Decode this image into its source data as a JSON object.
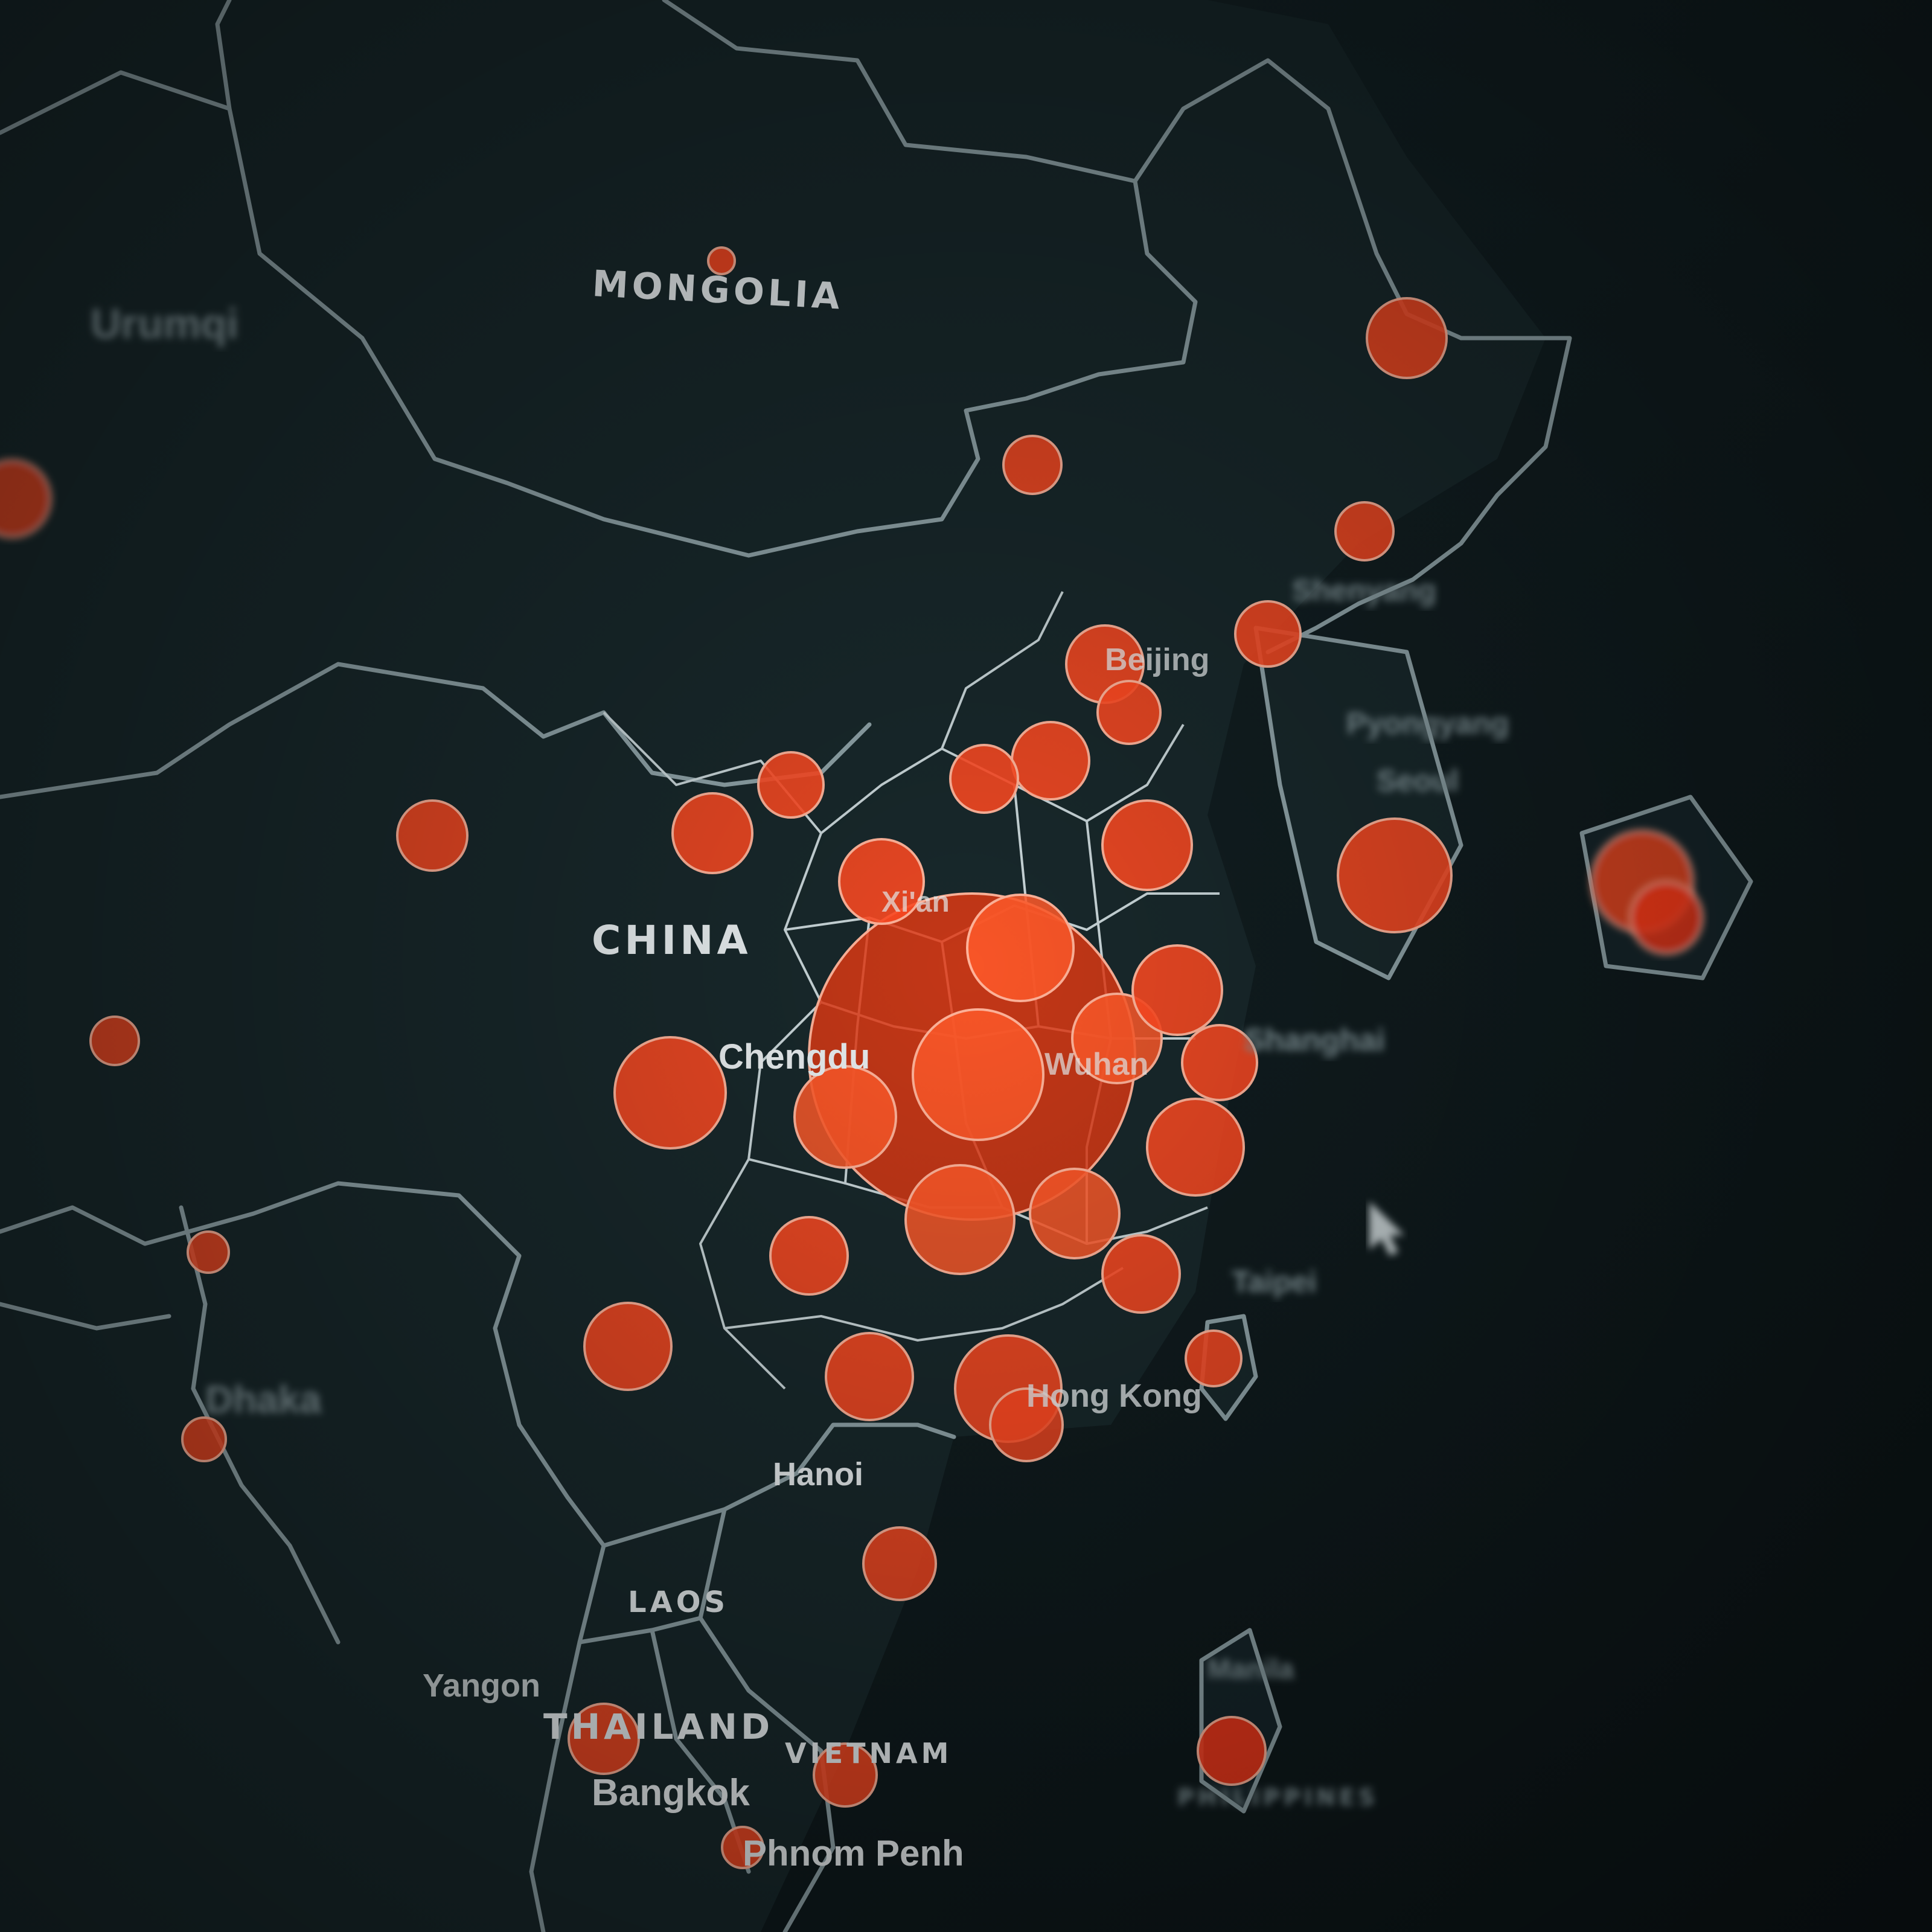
{
  "map": {
    "colors": {
      "background": "#0f1a1c",
      "land": "#172528",
      "border": "#8fa3a8",
      "bubble": "#ff4a22",
      "bubble_stroke": "#ffb39a",
      "label": "#e9eef0"
    },
    "country_labels": [
      {
        "id": "mongolia",
        "text": "MONGOLIA"
      },
      {
        "id": "china",
        "text": "CHINA"
      },
      {
        "id": "laos",
        "text": "LAOS"
      },
      {
        "id": "thailand",
        "text": "THAILAND"
      },
      {
        "id": "vietnam",
        "text": "VIETNAM"
      },
      {
        "id": "philippines",
        "text": "PHILIPPINES"
      }
    ],
    "city_labels": [
      {
        "id": "urumqi",
        "text": "Urumqi"
      },
      {
        "id": "xian",
        "text": "Xi'an"
      },
      {
        "id": "chengdu",
        "text": "Chengdu"
      },
      {
        "id": "wuhan",
        "text": "Wuhan"
      },
      {
        "id": "beijing",
        "text": "Beijing"
      },
      {
        "id": "shenyang",
        "text": "Shenyang"
      },
      {
        "id": "pyongyang",
        "text": "Pyongyang"
      },
      {
        "id": "seoul",
        "text": "Seoul"
      },
      {
        "id": "shanghai",
        "text": "Shanghai"
      },
      {
        "id": "taipei",
        "text": "Taipei"
      },
      {
        "id": "hongkong",
        "text": "Hong Kong"
      },
      {
        "id": "hanoi",
        "text": "Hanoi"
      },
      {
        "id": "dhaka",
        "text": "Dhaka"
      },
      {
        "id": "yangon",
        "text": "Yangon"
      },
      {
        "id": "bangkok",
        "text": "Bangkok"
      },
      {
        "id": "phnompenh",
        "text": "Phnom Penh"
      },
      {
        "id": "manila",
        "text": "Manila"
      }
    ]
  }
}
